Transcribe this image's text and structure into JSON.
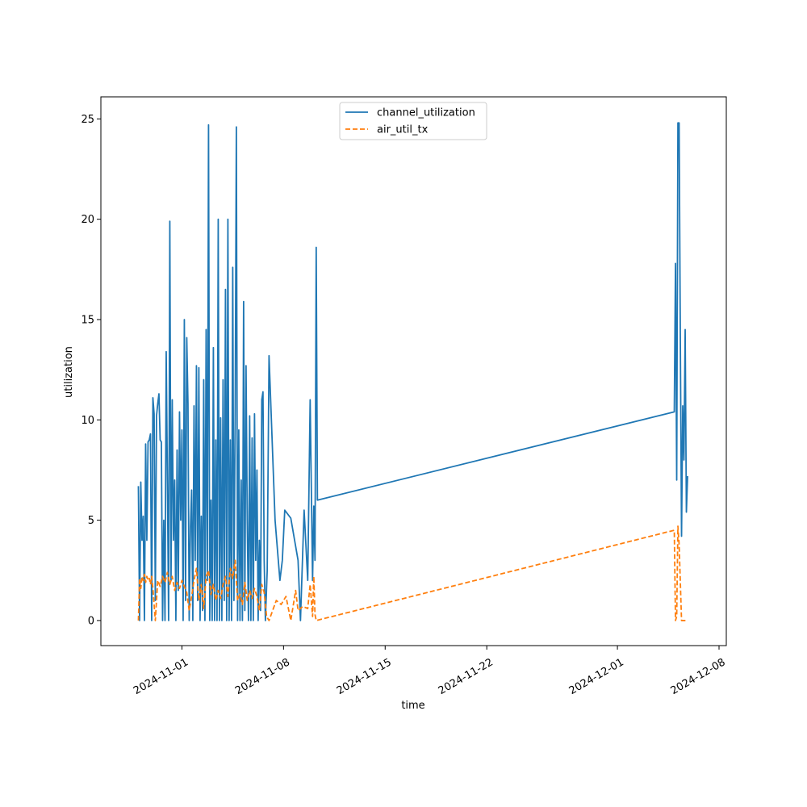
{
  "chart_data": {
    "type": "line",
    "xlabel": "time",
    "ylabel": "utilization",
    "xlim": [
      "2024-10-26T10:00",
      "2024-12-08T12:00"
    ],
    "ylim": [
      -1.25,
      26.1
    ],
    "x_ticks": [
      "2024-11-01",
      "2024-11-08",
      "2024-11-15",
      "2024-11-22",
      "2024-12-01",
      "2024-12-08"
    ],
    "y_ticks": [
      0,
      5,
      10,
      15,
      20,
      25
    ],
    "grid": false,
    "legend_position": "upper center",
    "series": [
      {
        "name": "channel_utilization",
        "color": "#1f77b4",
        "dash": "solid",
        "points": [
          [
            "2024-10-29T00:00",
            6.7
          ],
          [
            "2024-10-29T02:00",
            0
          ],
          [
            "2024-10-29T04:00",
            6.9
          ],
          [
            "2024-10-29T06:00",
            4.0
          ],
          [
            "2024-10-29T08:00",
            5.2
          ],
          [
            "2024-10-29T10:00",
            0
          ],
          [
            "2024-10-29T12:00",
            8.8
          ],
          [
            "2024-10-29T14:00",
            4.0
          ],
          [
            "2024-10-29T16:00",
            8.9
          ],
          [
            "2024-10-29T18:00",
            9.0
          ],
          [
            "2024-10-29T20:00",
            9.3
          ],
          [
            "2024-10-29T22:00",
            0
          ],
          [
            "2024-10-30T00:00",
            11.1
          ],
          [
            "2024-10-30T02:00",
            10.3
          ],
          [
            "2024-10-30T04:00",
            1.0
          ],
          [
            "2024-10-30T06:00",
            10.2
          ],
          [
            "2024-10-30T08:00",
            10.8
          ],
          [
            "2024-10-30T10:00",
            11.3
          ],
          [
            "2024-10-30T12:00",
            9.0
          ],
          [
            "2024-10-30T14:00",
            8.9
          ],
          [
            "2024-10-30T16:00",
            0
          ],
          [
            "2024-10-30T18:00",
            5.0
          ],
          [
            "2024-10-30T20:00",
            0
          ],
          [
            "2024-10-30T22:00",
            13.4
          ],
          [
            "2024-10-31T00:00",
            6.9
          ],
          [
            "2024-10-31T02:00",
            0
          ],
          [
            "2024-10-31T04:00",
            19.9
          ],
          [
            "2024-10-31T06:00",
            2.0
          ],
          [
            "2024-10-31T08:00",
            11.0
          ],
          [
            "2024-10-31T10:00",
            4.0
          ],
          [
            "2024-10-31T12:00",
            7.0
          ],
          [
            "2024-10-31T14:00",
            0
          ],
          [
            "2024-10-31T16:00",
            8.5
          ],
          [
            "2024-10-31T18:00",
            1.5
          ],
          [
            "2024-10-31T20:00",
            10.4
          ],
          [
            "2024-10-31T22:00",
            5.0
          ],
          [
            "2024-11-01T00:00",
            9.5
          ],
          [
            "2024-11-01T02:00",
            0
          ],
          [
            "2024-11-01T04:00",
            15.0
          ],
          [
            "2024-11-01T06:00",
            1.0
          ],
          [
            "2024-11-01T08:00",
            14.1
          ],
          [
            "2024-11-01T10:00",
            10.8
          ],
          [
            "2024-11-01T12:00",
            0
          ],
          [
            "2024-11-01T14:00",
            4.5
          ],
          [
            "2024-11-01T16:00",
            6.5
          ],
          [
            "2024-11-01T18:00",
            0
          ],
          [
            "2024-11-01T20:00",
            10.7
          ],
          [
            "2024-11-01T22:00",
            3.0
          ],
          [
            "2024-11-02T00:00",
            12.7
          ],
          [
            "2024-11-02T02:00",
            1.0
          ],
          [
            "2024-11-02T04:00",
            12.6
          ],
          [
            "2024-11-02T06:00",
            0
          ],
          [
            "2024-11-02T08:00",
            5.2
          ],
          [
            "2024-11-02T10:00",
            0.5
          ],
          [
            "2024-11-02T12:00",
            12.0
          ],
          [
            "2024-11-02T14:00",
            0
          ],
          [
            "2024-11-02T16:00",
            14.5
          ],
          [
            "2024-11-02T18:00",
            2.0
          ],
          [
            "2024-11-02T20:00",
            24.7
          ],
          [
            "2024-11-02T22:00",
            0
          ],
          [
            "2024-11-03T00:00",
            6.0
          ],
          [
            "2024-11-03T02:00",
            0
          ],
          [
            "2024-11-03T04:00",
            13.6
          ],
          [
            "2024-11-03T06:00",
            0
          ],
          [
            "2024-11-03T08:00",
            9.0
          ],
          [
            "2024-11-03T10:00",
            0
          ],
          [
            "2024-11-03T12:00",
            20.0
          ],
          [
            "2024-11-03T14:00",
            0
          ],
          [
            "2024-11-03T16:00",
            10.1
          ],
          [
            "2024-11-03T18:00",
            0
          ],
          [
            "2024-11-03T20:00",
            12.0
          ],
          [
            "2024-11-03T22:00",
            1.0
          ],
          [
            "2024-11-04T00:00",
            16.5
          ],
          [
            "2024-11-04T02:00",
            0
          ],
          [
            "2024-11-04T04:00",
            20.0
          ],
          [
            "2024-11-04T06:00",
            0
          ],
          [
            "2024-11-04T08:00",
            9.0
          ],
          [
            "2024-11-04T10:00",
            0
          ],
          [
            "2024-11-04T12:00",
            17.6
          ],
          [
            "2024-11-04T14:00",
            1.0
          ],
          [
            "2024-11-04T16:00",
            10.0
          ],
          [
            "2024-11-04T18:00",
            24.6
          ],
          [
            "2024-11-04T20:00",
            0
          ],
          [
            "2024-11-04T22:00",
            9.5
          ],
          [
            "2024-11-05T00:00",
            0
          ],
          [
            "2024-11-05T02:00",
            7.0
          ],
          [
            "2024-11-05T04:00",
            0
          ],
          [
            "2024-11-05T06:00",
            15.9
          ],
          [
            "2024-11-05T08:00",
            0.5
          ],
          [
            "2024-11-05T10:00",
            12.7
          ],
          [
            "2024-11-05T12:00",
            5.0
          ],
          [
            "2024-11-05T14:00",
            0
          ],
          [
            "2024-11-05T16:00",
            10.2
          ],
          [
            "2024-11-05T18:00",
            0
          ],
          [
            "2024-11-05T20:00",
            9.1
          ],
          [
            "2024-11-05T22:00",
            0
          ],
          [
            "2024-11-06T00:00",
            10.3
          ],
          [
            "2024-11-06T02:00",
            3.0
          ],
          [
            "2024-11-06T04:00",
            7.5
          ],
          [
            "2024-11-06T06:00",
            0
          ],
          [
            "2024-11-06T08:00",
            4.0
          ],
          [
            "2024-11-06T10:00",
            0.5
          ],
          [
            "2024-11-06T12:00",
            11.0
          ],
          [
            "2024-11-06T14:00",
            11.4
          ],
          [
            "2024-11-06T16:00",
            3.0
          ],
          [
            "2024-11-06T18:00",
            0
          ],
          [
            "2024-11-06T21:00",
            2.5
          ],
          [
            "2024-11-07T00:00",
            13.2
          ],
          [
            "2024-11-07T10:00",
            5.0
          ],
          [
            "2024-11-07T18:00",
            2.0
          ],
          [
            "2024-11-07T22:00",
            3.0
          ],
          [
            "2024-11-08T02:00",
            5.5
          ],
          [
            "2024-11-08T12:00",
            5.1
          ],
          [
            "2024-11-09T00:00",
            3.0
          ],
          [
            "2024-11-09T04:00",
            0
          ],
          [
            "2024-11-09T10:00",
            5.5
          ],
          [
            "2024-11-09T16:00",
            2.0
          ],
          [
            "2024-11-09T20:00",
            11.0
          ],
          [
            "2024-11-10T00:00",
            2.0
          ],
          [
            "2024-11-10T02:00",
            5.7
          ],
          [
            "2024-11-10T04:00",
            3.0
          ],
          [
            "2024-11-10T06:00",
            18.6
          ],
          [
            "2024-11-10T08:00",
            6.0
          ],
          [
            "2024-12-04T22:00",
            10.4
          ],
          [
            "2024-12-05T00:00",
            17.8
          ],
          [
            "2024-12-05T02:00",
            7.0
          ],
          [
            "2024-12-05T04:00",
            24.8
          ],
          [
            "2024-12-05T06:00",
            24.8
          ],
          [
            "2024-12-05T08:00",
            14.0
          ],
          [
            "2024-12-05T10:00",
            4.2
          ],
          [
            "2024-12-05T12:00",
            10.7
          ],
          [
            "2024-12-05T14:00",
            8.0
          ],
          [
            "2024-12-05T16:00",
            14.5
          ],
          [
            "2024-12-05T18:00",
            5.4
          ],
          [
            "2024-12-05T20:00",
            7.2
          ]
        ]
      },
      {
        "name": "air_util_tx",
        "color": "#ff7f0e",
        "dash": "dashed",
        "points": [
          [
            "2024-10-29T00:00",
            0
          ],
          [
            "2024-10-29T02:00",
            2.1
          ],
          [
            "2024-10-29T04:00",
            1.6
          ],
          [
            "2024-10-29T06:00",
            2.2
          ],
          [
            "2024-10-29T08:00",
            2.0
          ],
          [
            "2024-10-29T10:00",
            2.3
          ],
          [
            "2024-10-29T12:00",
            1.9
          ],
          [
            "2024-10-29T14:00",
            2.2
          ],
          [
            "2024-10-29T16:00",
            2.0
          ],
          [
            "2024-10-29T18:00",
            2.1
          ],
          [
            "2024-10-29T20:00",
            1.8
          ],
          [
            "2024-10-29T22:00",
            2.2
          ],
          [
            "2024-10-30T00:00",
            1.6
          ],
          [
            "2024-10-30T04:00",
            0
          ],
          [
            "2024-10-30T08:00",
            2.0
          ],
          [
            "2024-10-30T12:00",
            1.7
          ],
          [
            "2024-10-30T16:00",
            2.2
          ],
          [
            "2024-10-30T20:00",
            1.9
          ],
          [
            "2024-10-31T00:00",
            2.4
          ],
          [
            "2024-10-31T04:00",
            1.8
          ],
          [
            "2024-10-31T08:00",
            2.2
          ],
          [
            "2024-10-31T12:00",
            1.5
          ],
          [
            "2024-10-31T16:00",
            1.9
          ],
          [
            "2024-10-31T20:00",
            1.6
          ],
          [
            "2024-11-01T00:00",
            2.0
          ],
          [
            "2024-11-01T04:00",
            1.7
          ],
          [
            "2024-11-01T08:00",
            1.4
          ],
          [
            "2024-11-01T12:00",
            0.5
          ],
          [
            "2024-11-01T16:00",
            1.2
          ],
          [
            "2024-11-01T20:00",
            2.0
          ],
          [
            "2024-11-02T00:00",
            2.6
          ],
          [
            "2024-11-02T04:00",
            1.0
          ],
          [
            "2024-11-02T08:00",
            1.8
          ],
          [
            "2024-11-02T12:00",
            0.6
          ],
          [
            "2024-11-02T16:00",
            2.2
          ],
          [
            "2024-11-02T20:00",
            2.5
          ],
          [
            "2024-11-03T00:00",
            1.3
          ],
          [
            "2024-11-03T04:00",
            1.8
          ],
          [
            "2024-11-03T08:00",
            1.0
          ],
          [
            "2024-11-03T12:00",
            1.5
          ],
          [
            "2024-11-03T16:00",
            1.1
          ],
          [
            "2024-11-03T20:00",
            1.8
          ],
          [
            "2024-11-04T00:00",
            2.2
          ],
          [
            "2024-11-04T04:00",
            1.2
          ],
          [
            "2024-11-04T08:00",
            2.6
          ],
          [
            "2024-11-04T12:00",
            2.1
          ],
          [
            "2024-11-04T16:00",
            3.0
          ],
          [
            "2024-11-04T20:00",
            1.0
          ],
          [
            "2024-11-05T00:00",
            1.3
          ],
          [
            "2024-11-05T04:00",
            0.8
          ],
          [
            "2024-11-05T08:00",
            1.9
          ],
          [
            "2024-11-05T12:00",
            1.0
          ],
          [
            "2024-11-05T16:00",
            1.5
          ],
          [
            "2024-11-05T20:00",
            1.1
          ],
          [
            "2024-11-06T00:00",
            1.6
          ],
          [
            "2024-11-06T04:00",
            1.2
          ],
          [
            "2024-11-06T08:00",
            0.5
          ],
          [
            "2024-11-06T12:00",
            1.8
          ],
          [
            "2024-11-06T16:00",
            1.4
          ],
          [
            "2024-11-06T20:00",
            0.2
          ],
          [
            "2024-11-07T00:00",
            0
          ],
          [
            "2024-11-07T12:00",
            1.0
          ],
          [
            "2024-11-07T20:00",
            0.8
          ],
          [
            "2024-11-08T04:00",
            1.2
          ],
          [
            "2024-11-08T12:00",
            0
          ],
          [
            "2024-11-08T20:00",
            1.5
          ],
          [
            "2024-11-09T00:00",
            0.5
          ],
          [
            "2024-11-09T08:00",
            0.7
          ],
          [
            "2024-11-09T16:00",
            0.6
          ],
          [
            "2024-11-09T20:00",
            1.8
          ],
          [
            "2024-11-10T00:00",
            0.2
          ],
          [
            "2024-11-10T02:00",
            2.2
          ],
          [
            "2024-11-10T04:00",
            0.3
          ],
          [
            "2024-11-10T06:00",
            0
          ],
          [
            "2024-12-04T22:00",
            4.5
          ],
          [
            "2024-12-05T00:00",
            0
          ],
          [
            "2024-12-05T02:00",
            0.2
          ],
          [
            "2024-12-05T04:00",
            4.7
          ],
          [
            "2024-12-05T06:00",
            3.8
          ],
          [
            "2024-12-05T10:00",
            0
          ],
          [
            "2024-12-05T20:00",
            0
          ]
        ]
      }
    ]
  }
}
